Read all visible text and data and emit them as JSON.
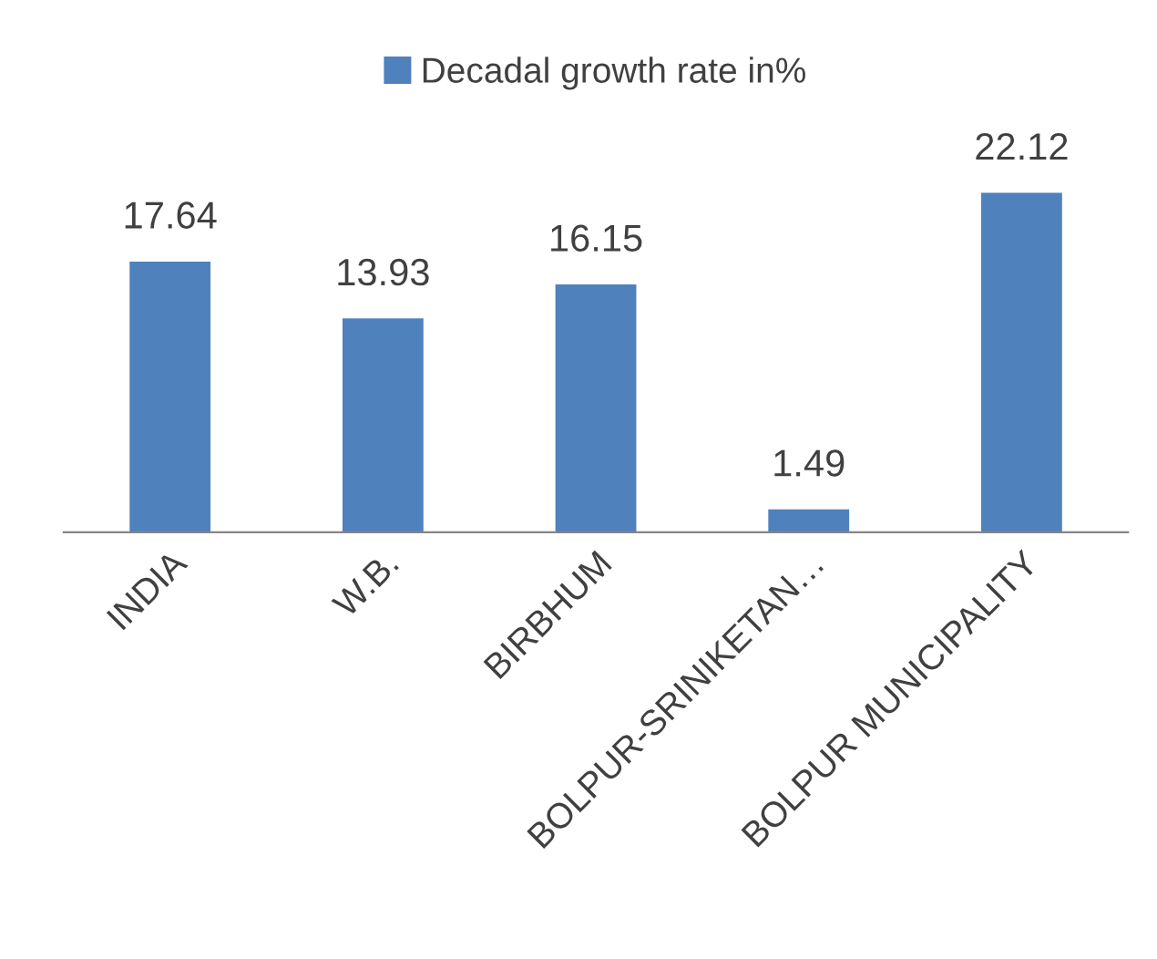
{
  "chart_data": {
    "type": "bar",
    "categories": [
      "INDIA",
      "W.B.",
      "BIRBHUM",
      "BOLPUR-SRINIKETAN…",
      "BOLPUR MUNICIPALITY"
    ],
    "series": [
      {
        "name": "Decadal growth rate in%",
        "color": "#4f81bd",
        "values": [
          17.64,
          13.93,
          16.15,
          1.49,
          22.12
        ]
      }
    ],
    "data_labels": true,
    "legend": "top",
    "grid": false
  }
}
